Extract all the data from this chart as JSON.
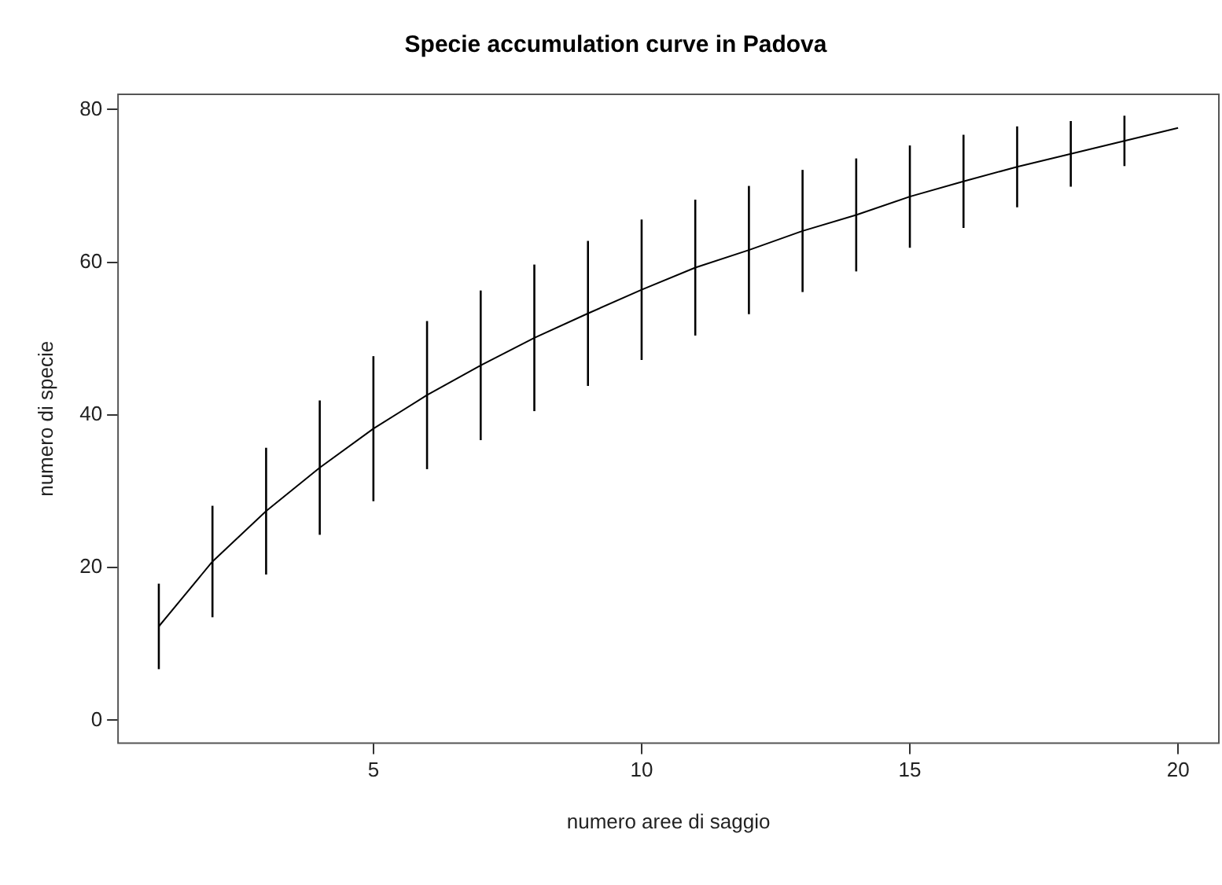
{
  "chart_data": {
    "type": "line",
    "title": "Specie accumulation curve in Padova",
    "xlabel": "numero aree di saggio",
    "ylabel": "numero di specie",
    "x": [
      1,
      2,
      3,
      4,
      5,
      6,
      7,
      8,
      9,
      10,
      11,
      12,
      13,
      14,
      15,
      16,
      17,
      18,
      19,
      20
    ],
    "values": [
      12.3,
      20.8,
      27.4,
      33.1,
      38.2,
      42.6,
      46.5,
      50.1,
      53.3,
      56.4,
      59.3,
      61.6,
      64.1,
      66.2,
      68.6,
      70.6,
      72.5,
      74.2,
      75.9,
      77.6
    ],
    "errors": [
      5.6,
      7.3,
      8.3,
      8.8,
      9.5,
      9.7,
      9.8,
      9.6,
      9.5,
      9.2,
      8.9,
      8.4,
      8.0,
      7.4,
      6.7,
      6.1,
      5.3,
      4.3,
      3.3,
      null
    ],
    "color": "#000000",
    "marker": "none",
    "line_style": "solid",
    "grid": false,
    "legend": false,
    "xlim": [
      0.24,
      20.76
    ],
    "ylim": [
      -3,
      82
    ],
    "xticks": [
      5,
      10,
      15,
      20
    ],
    "yticks": [
      0,
      20,
      40,
      60,
      80
    ]
  }
}
